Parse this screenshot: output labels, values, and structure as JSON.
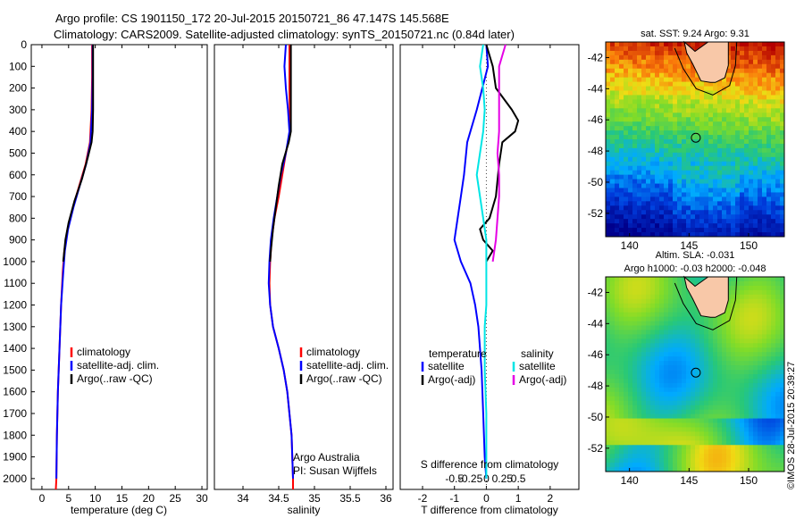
{
  "header": {
    "line1": "Argo profile: CS 1901150_172 20-Jul-2015 20150721_86 47.147S 145.568E",
    "line2": "Climatology: CARS2009. Satellite-adjusted climatology: synTS_20150721.nc (0.84d later)"
  },
  "colors": {
    "climatology": "#ff0000",
    "satellite": "#0000ff",
    "argo": "#000000",
    "sal_satellite": "#00e5e5",
    "sal_argo": "#e500e5"
  },
  "chart_data": [
    {
      "type": "line",
      "xlabel": "temperature (deg C)",
      "xlim": [
        -2,
        31
      ],
      "xticks": [
        0,
        5,
        10,
        15,
        20,
        25,
        30
      ],
      "ylim": [
        0,
        2050
      ],
      "yticks": [
        0,
        100,
        200,
        300,
        400,
        500,
        600,
        700,
        800,
        900,
        1000,
        1100,
        1200,
        1300,
        1400,
        1500,
        1600,
        1700,
        1800,
        1900,
        2000
      ],
      "legend_position": "center-left",
      "series": [
        {
          "name": "climatology",
          "color": "#ff0000",
          "points": [
            [
              9.4,
              0
            ],
            [
              9.4,
              150
            ],
            [
              9.3,
              300
            ],
            [
              9.0,
              450
            ],
            [
              8.2,
              550
            ],
            [
              7.0,
              650
            ],
            [
              5.8,
              750
            ],
            [
              4.8,
              850
            ],
            [
              4.2,
              950
            ],
            [
              3.9,
              1050
            ],
            [
              3.6,
              1200
            ],
            [
              3.3,
              1400
            ],
            [
              3.0,
              1600
            ],
            [
              2.8,
              1800
            ],
            [
              2.7,
              2000
            ],
            [
              2.6,
              2050
            ]
          ]
        },
        {
          "name": "satellite-adj. clim.",
          "color": "#0000ff",
          "points": [
            [
              9.5,
              0
            ],
            [
              9.5,
              150
            ],
            [
              9.4,
              300
            ],
            [
              9.1,
              450
            ],
            [
              8.3,
              550
            ],
            [
              7.1,
              650
            ],
            [
              5.9,
              750
            ],
            [
              4.9,
              850
            ],
            [
              4.3,
              950
            ],
            [
              4.0,
              1050
            ],
            [
              3.6,
              1200
            ],
            [
              3.3,
              1400
            ],
            [
              3.0,
              1600
            ],
            [
              2.8,
              1800
            ],
            [
              2.7,
              2000
            ]
          ]
        },
        {
          "name": "Argo(..raw -QC)",
          "color": "#000000",
          "points": [
            [
              9.6,
              0
            ],
            [
              9.6,
              150
            ],
            [
              9.6,
              300
            ],
            [
              9.5,
              400
            ],
            [
              9.3,
              450
            ],
            [
              8.6,
              520
            ],
            [
              7.5,
              620
            ],
            [
              6.1,
              720
            ],
            [
              5.0,
              820
            ],
            [
              4.4,
              900
            ],
            [
              4.0,
              1000
            ]
          ]
        }
      ]
    },
    {
      "type": "line",
      "xlabel": "salinity",
      "xlim": [
        33.6,
        36.1
      ],
      "xticks": [
        34,
        34.5,
        35,
        35.5,
        36
      ],
      "ylim": [
        0,
        2050
      ],
      "legend_position": "center-right",
      "annotation": [
        "Argo Australia",
        "PI: Susan Wijffels"
      ],
      "series": [
        {
          "name": "climatology",
          "color": "#ff0000",
          "points": [
            [
              34.65,
              0
            ],
            [
              34.65,
              200
            ],
            [
              34.66,
              400
            ],
            [
              34.6,
              500
            ],
            [
              34.55,
              600
            ],
            [
              34.5,
              700
            ],
            [
              34.44,
              800
            ],
            [
              34.4,
              900
            ],
            [
              34.38,
              1000
            ],
            [
              34.37,
              1100
            ],
            [
              34.38,
              1200
            ],
            [
              34.42,
              1300
            ],
            [
              34.5,
              1400
            ],
            [
              34.57,
              1500
            ],
            [
              34.62,
              1600
            ],
            [
              34.65,
              1700
            ],
            [
              34.68,
              1800
            ],
            [
              34.69,
              1900
            ],
            [
              34.7,
              2000
            ],
            [
              34.7,
              2050
            ]
          ]
        },
        {
          "name": "satellite-adj. clim.",
          "color": "#0000ff",
          "points": [
            [
              34.6,
              0
            ],
            [
              34.58,
              100
            ],
            [
              34.6,
              200
            ],
            [
              34.63,
              300
            ],
            [
              34.65,
              400
            ],
            [
              34.6,
              500
            ],
            [
              34.53,
              600
            ],
            [
              34.48,
              700
            ],
            [
              34.43,
              800
            ],
            [
              34.39,
              900
            ],
            [
              34.37,
              1000
            ],
            [
              34.36,
              1100
            ],
            [
              34.38,
              1200
            ],
            [
              34.42,
              1300
            ],
            [
              34.5,
              1400
            ],
            [
              34.57,
              1500
            ],
            [
              34.62,
              1600
            ],
            [
              34.65,
              1700
            ],
            [
              34.68,
              1800
            ],
            [
              34.69,
              1900
            ],
            [
              34.7,
              2000
            ]
          ]
        },
        {
          "name": "Argo(..raw -QC)",
          "color": "#000000",
          "points": [
            [
              34.67,
              0
            ],
            [
              34.67,
              100
            ],
            [
              34.67,
              200
            ],
            [
              34.67,
              300
            ],
            [
              34.67,
              400
            ],
            [
              34.64,
              450
            ],
            [
              34.55,
              550
            ],
            [
              34.5,
              650
            ],
            [
              34.46,
              750
            ],
            [
              34.42,
              850
            ],
            [
              34.39,
              950
            ],
            [
              34.38,
              1000
            ]
          ]
        }
      ]
    },
    {
      "type": "line",
      "xlabel": "T difference from climatology",
      "xlabel_top": "S difference from climatology",
      "xlim": [
        -2.7,
        2.9
      ],
      "xticks": [
        -2,
        -1,
        0,
        1,
        2
      ],
      "xticks_salinity": [
        "-0.5",
        "-0.25",
        "0",
        "0.25",
        "0.5"
      ],
      "ylim": [
        0,
        2050
      ],
      "legend": {
        "temperature_heading": "temperature",
        "salinity_heading": "salinity"
      },
      "series": [
        {
          "name": "satellite",
          "group": "temperature",
          "color": "#0000ff",
          "points": [
            [
              0,
              0
            ],
            [
              0.05,
              100
            ],
            [
              -0.3,
              300
            ],
            [
              -0.6,
              450
            ],
            [
              -0.7,
              600
            ],
            [
              -0.8,
              700
            ],
            [
              -0.9,
              800
            ],
            [
              -1.0,
              900
            ],
            [
              -0.8,
              1000
            ],
            [
              -0.5,
              1100
            ],
            [
              -0.35,
              1200
            ],
            [
              -0.25,
              1300
            ],
            [
              -0.2,
              1400
            ],
            [
              -0.15,
              1500
            ],
            [
              -0.1,
              1700
            ],
            [
              -0.05,
              1900
            ],
            [
              0,
              2000
            ]
          ]
        },
        {
          "name": "Argo(-adj)",
          "group": "temperature",
          "color": "#000000",
          "points": [
            [
              0,
              0
            ],
            [
              0.2,
              100
            ],
            [
              0.3,
              200
            ],
            [
              0.8,
              300
            ],
            [
              1.0,
              350
            ],
            [
              0.9,
              400
            ],
            [
              0.5,
              450
            ],
            [
              0.4,
              550
            ],
            [
              0.3,
              700
            ],
            [
              0.1,
              800
            ],
            [
              -0.2,
              850
            ],
            [
              -0.1,
              900
            ],
            [
              0.2,
              950
            ],
            [
              0,
              1000
            ]
          ]
        },
        {
          "name": "satellite",
          "group": "salinity",
          "color": "#00e5e5",
          "points": [
            [
              -0.1,
              0
            ],
            [
              -0.2,
              100
            ],
            [
              -0.1,
              200
            ],
            [
              -0.05,
              300
            ],
            [
              -0.1,
              400
            ],
            [
              -0.2,
              500
            ],
            [
              -0.3,
              600
            ],
            [
              -0.2,
              700
            ],
            [
              -0.1,
              800
            ],
            [
              0,
              900
            ],
            [
              0,
              1000
            ],
            [
              0,
              1100
            ],
            [
              0,
              1200
            ],
            [
              -0.05,
              1300
            ],
            [
              -0.05,
              1500
            ],
            [
              0,
              1700
            ],
            [
              0,
              1900
            ],
            [
              0,
              2000
            ]
          ]
        },
        {
          "name": "Argo(-adj)",
          "group": "salinity",
          "color": "#e500e5",
          "points": [
            [
              0.6,
              0
            ],
            [
              0.5,
              50
            ],
            [
              0.4,
              100
            ],
            [
              0.4,
              200
            ],
            [
              0.4,
              300
            ],
            [
              0.4,
              400
            ],
            [
              0.35,
              500
            ],
            [
              0.4,
              600
            ],
            [
              0.4,
              700
            ],
            [
              0.35,
              800
            ],
            [
              0.3,
              900
            ],
            [
              0.2,
              1000
            ]
          ]
        }
      ]
    }
  ],
  "maps": [
    {
      "title": "sat. SST: 9.24  Argo: 9.31",
      "title_lines": [
        "sat. SST: 9.24  Argo: 9.31"
      ],
      "kind": "sst",
      "xlim": [
        138,
        153
      ],
      "ylim": [
        -53.5,
        -41
      ],
      "xticks": [
        "140",
        "145",
        "150"
      ],
      "yticks": [
        "-42",
        "-44",
        "-46",
        "-48",
        "-50",
        "-52"
      ],
      "marker": {
        "lon": 145.568,
        "lat": -47.147
      }
    },
    {
      "title_lines": [
        "Altim. SLA: -0.031",
        "Argo h1000: -0.03 h2000: -0.048"
      ],
      "kind": "sla",
      "xlim": [
        138,
        153
      ],
      "ylim": [
        -53.5,
        -41
      ],
      "xticks": [
        "140",
        "145",
        "150"
      ],
      "yticks": [
        "-42",
        "-44",
        "-46",
        "-48",
        "-50",
        "-52"
      ],
      "marker": {
        "lon": 145.568,
        "lat": -47.147
      }
    }
  ],
  "footer": {
    "credit": "©IMOS 28-Jul-2015 20:39:27"
  }
}
